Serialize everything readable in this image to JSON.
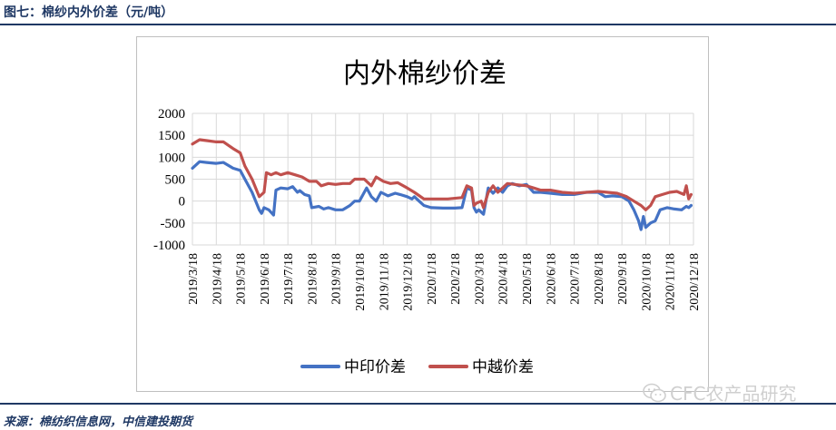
{
  "figure": {
    "title": "图七：棉纱内外价差（元/吨）",
    "source": "来源：棉纺织信息网，中信建投期货",
    "watermark": "CFC农产品研究"
  },
  "chart_data": {
    "type": "line",
    "title": "内外棉纱价差",
    "xlabel": "",
    "ylabel": "",
    "ylim": [
      -1000,
      2000
    ],
    "ytick_step": 500,
    "grid": true,
    "legend_position": "bottom",
    "x_ticks": [
      "2019/3/18",
      "2019/4/18",
      "2019/5/18",
      "2019/6/18",
      "2019/7/18",
      "2019/8/18",
      "2019/9/18",
      "2019/10/18",
      "2019/11/18",
      "2019/12/18",
      "2020/1/18",
      "2020/2/18",
      "2020/3/18",
      "2020/4/18",
      "2020/5/18",
      "2020/6/18",
      "2020/7/18",
      "2020/8/18",
      "2020/9/18",
      "2020/10/18",
      "2020/11/18",
      "2020/12/18"
    ],
    "y_ticks": [
      "2000",
      "1500",
      "1000",
      "500",
      "0",
      "-500",
      "-1000"
    ],
    "series": [
      {
        "name": "中印价差",
        "color": "#4472c4",
        "points": [
          [
            0,
            750
          ],
          [
            0.3,
            900
          ],
          [
            0.6,
            880
          ],
          [
            1.0,
            860
          ],
          [
            1.3,
            880
          ],
          [
            1.7,
            750
          ],
          [
            2.0,
            700
          ],
          [
            2.2,
            500
          ],
          [
            2.5,
            200
          ],
          [
            2.8,
            -200
          ],
          [
            2.9,
            -280
          ],
          [
            3.0,
            -150
          ],
          [
            3.2,
            -200
          ],
          [
            3.4,
            -320
          ],
          [
            3.5,
            250
          ],
          [
            3.7,
            300
          ],
          [
            4.0,
            280
          ],
          [
            4.2,
            330
          ],
          [
            4.4,
            200
          ],
          [
            4.5,
            240
          ],
          [
            4.7,
            150
          ],
          [
            4.9,
            120
          ],
          [
            5.0,
            -150
          ],
          [
            5.3,
            -120
          ],
          [
            5.5,
            -180
          ],
          [
            5.7,
            -150
          ],
          [
            6.0,
            -200
          ],
          [
            6.3,
            -200
          ],
          [
            6.6,
            -100
          ],
          [
            6.8,
            0
          ],
          [
            7.0,
            0
          ],
          [
            7.2,
            200
          ],
          [
            7.3,
            300
          ],
          [
            7.5,
            100
          ],
          [
            7.7,
            0
          ],
          [
            7.9,
            200
          ],
          [
            8.2,
            120
          ],
          [
            8.5,
            180
          ],
          [
            8.7,
            150
          ],
          [
            9.0,
            100
          ],
          [
            9.2,
            50
          ],
          [
            9.3,
            100
          ],
          [
            9.5,
            0
          ],
          [
            9.7,
            -100
          ],
          [
            10.0,
            -150
          ],
          [
            10.5,
            -160
          ],
          [
            11.0,
            -160
          ],
          [
            11.3,
            -150
          ],
          [
            11.5,
            300
          ],
          [
            11.7,
            250
          ],
          [
            11.8,
            -150
          ],
          [
            11.9,
            -250
          ],
          [
            12.0,
            -200
          ],
          [
            12.2,
            -300
          ],
          [
            12.4,
            300
          ],
          [
            12.6,
            180
          ],
          [
            12.8,
            300
          ],
          [
            13.0,
            200
          ],
          [
            13.2,
            350
          ],
          [
            13.4,
            400
          ],
          [
            13.7,
            350
          ],
          [
            14.0,
            380
          ],
          [
            14.3,
            200
          ],
          [
            14.6,
            200
          ],
          [
            15.0,
            180
          ],
          [
            15.5,
            150
          ],
          [
            16.0,
            150
          ],
          [
            16.5,
            200
          ],
          [
            17.0,
            200
          ],
          [
            17.3,
            100
          ],
          [
            17.6,
            120
          ],
          [
            18.0,
            100
          ],
          [
            18.3,
            0
          ],
          [
            18.5,
            -200
          ],
          [
            18.7,
            -450
          ],
          [
            18.8,
            -650
          ],
          [
            18.9,
            -350
          ],
          [
            19.0,
            -600
          ],
          [
            19.2,
            -500
          ],
          [
            19.4,
            -450
          ],
          [
            19.6,
            -200
          ],
          [
            19.9,
            -150
          ],
          [
            20.2,
            -180
          ],
          [
            20.5,
            -200
          ],
          [
            20.7,
            -120
          ],
          [
            20.8,
            -150
          ],
          [
            20.9,
            -100
          ]
        ]
      },
      {
        "name": "中越价差",
        "color": "#c0504d",
        "points": [
          [
            0,
            1300
          ],
          [
            0.3,
            1400
          ],
          [
            0.6,
            1380
          ],
          [
            1.0,
            1350
          ],
          [
            1.3,
            1350
          ],
          [
            1.7,
            1200
          ],
          [
            2.0,
            1100
          ],
          [
            2.2,
            800
          ],
          [
            2.5,
            500
          ],
          [
            2.8,
            100
          ],
          [
            3.0,
            200
          ],
          [
            3.1,
            650
          ],
          [
            3.3,
            600
          ],
          [
            3.5,
            650
          ],
          [
            3.7,
            600
          ],
          [
            4.0,
            650
          ],
          [
            4.3,
            600
          ],
          [
            4.6,
            550
          ],
          [
            4.9,
            450
          ],
          [
            5.2,
            450
          ],
          [
            5.4,
            350
          ],
          [
            5.7,
            400
          ],
          [
            6.0,
            380
          ],
          [
            6.3,
            400
          ],
          [
            6.6,
            400
          ],
          [
            6.8,
            500
          ],
          [
            7.2,
            500
          ],
          [
            7.5,
            350
          ],
          [
            7.7,
            550
          ],
          [
            8.0,
            450
          ],
          [
            8.3,
            400
          ],
          [
            8.6,
            420
          ],
          [
            9.0,
            300
          ],
          [
            9.3,
            200
          ],
          [
            9.7,
            50
          ],
          [
            10.2,
            50
          ],
          [
            10.7,
            50
          ],
          [
            11.3,
            80
          ],
          [
            11.5,
            350
          ],
          [
            11.7,
            300
          ],
          [
            11.8,
            -100
          ],
          [
            11.9,
            -50
          ],
          [
            12.1,
            0
          ],
          [
            12.2,
            -150
          ],
          [
            12.4,
            200
          ],
          [
            12.6,
            350
          ],
          [
            12.8,
            200
          ],
          [
            13.0,
            300
          ],
          [
            13.2,
            400
          ],
          [
            13.5,
            380
          ],
          [
            14.0,
            350
          ],
          [
            14.3,
            300
          ],
          [
            14.6,
            250
          ],
          [
            15.0,
            250
          ],
          [
            15.5,
            200
          ],
          [
            16.0,
            180
          ],
          [
            16.5,
            200
          ],
          [
            17.0,
            220
          ],
          [
            17.4,
            200
          ],
          [
            17.8,
            180
          ],
          [
            18.2,
            100
          ],
          [
            18.5,
            0
          ],
          [
            18.8,
            -100
          ],
          [
            19.0,
            -200
          ],
          [
            19.2,
            -100
          ],
          [
            19.4,
            100
          ],
          [
            19.7,
            150
          ],
          [
            20.0,
            200
          ],
          [
            20.3,
            220
          ],
          [
            20.6,
            150
          ],
          [
            20.7,
            350
          ],
          [
            20.8,
            50
          ],
          [
            20.9,
            150
          ]
        ]
      }
    ]
  }
}
